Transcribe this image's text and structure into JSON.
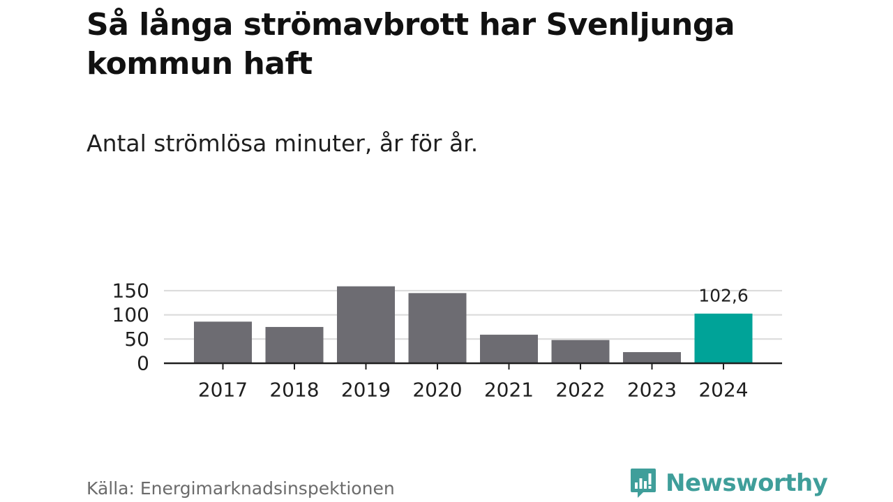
{
  "title": "Så långa strömavbrott har Svenljunga kommun haft",
  "subtitle": "Antal strömlösa minuter, år för år.",
  "source": "Källa: Energimarknadsinspektionen",
  "brand": {
    "name": "Newsworthy",
    "icon": "newsworthy-logo-icon",
    "color": "#3f9e9a"
  },
  "colors": {
    "bar": "#6d6c72",
    "highlight": "#00a398",
    "grid": "#d9d9d9",
    "axis": "#1f1f1f",
    "text": "#1f1f1f"
  },
  "chart_data": {
    "type": "bar",
    "title": "Så långa strömavbrott har Svenljunga kommun haft",
    "subtitle": "Antal strömlösa minuter, år för år.",
    "xlabel": "",
    "ylabel": "",
    "categories": [
      "2017",
      "2018",
      "2019",
      "2020",
      "2021",
      "2022",
      "2023",
      "2024"
    ],
    "values": [
      86,
      75,
      159,
      145,
      59,
      48,
      23,
      102.6
    ],
    "highlight_category": "2024",
    "data_labels": [
      {
        "category": "2024",
        "text": "102,6"
      }
    ],
    "ylim": [
      0,
      160
    ],
    "yticks": [
      0,
      50,
      100,
      150
    ],
    "ytick_labels": [
      "0",
      "50",
      "100",
      "150"
    ],
    "grid": true,
    "legend": "none"
  }
}
